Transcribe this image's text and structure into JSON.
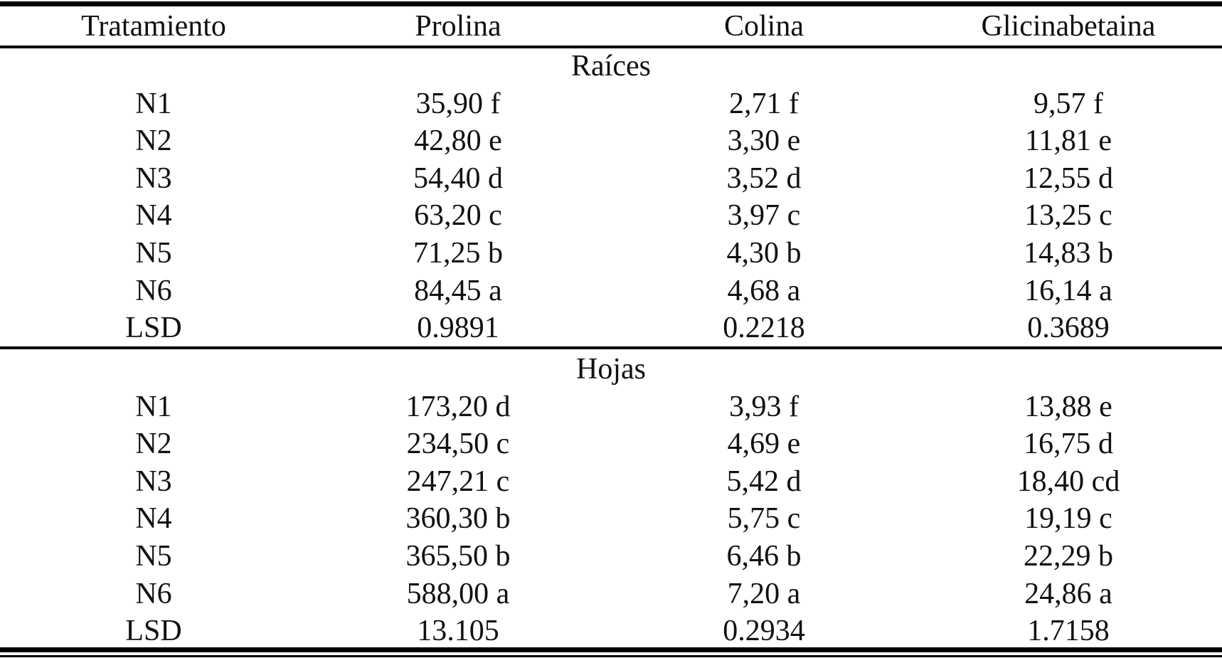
{
  "header": {
    "columns": [
      "Tratamiento",
      "Prolina",
      "Colina",
      "Glicinabetaina"
    ]
  },
  "sections": [
    {
      "title": "Raíces",
      "rows": [
        [
          "N1",
          "35,90 f",
          "2,71 f",
          "9,57 f"
        ],
        [
          "N2",
          "42,80 e",
          "3,30 e",
          "11,81 e"
        ],
        [
          "N3",
          "54,40 d",
          "3,52 d",
          "12,55 d"
        ],
        [
          "N4",
          "63,20 c",
          "3,97 c",
          "13,25 c"
        ],
        [
          "N5",
          "71,25 b",
          "4,30 b",
          "14,83 b"
        ],
        [
          "N6",
          "84,45 a",
          "4,68 a",
          "16,14 a"
        ],
        [
          "LSD",
          "0.9891",
          "0.2218",
          "0.3689"
        ]
      ]
    },
    {
      "title": "Hojas",
      "rows": [
        [
          "N1",
          "173,20 d",
          "3,93 f",
          "13,88 e"
        ],
        [
          "N2",
          "234,50 c",
          "4,69 e",
          "16,75 d"
        ],
        [
          "N3",
          "247,21 c",
          "5,42 d",
          "18,40 cd"
        ],
        [
          "N4",
          "360,30 b",
          "5,75 c",
          "19,19 c"
        ],
        [
          "N5",
          "365,50 b",
          "6,46 b",
          "22,29 b"
        ],
        [
          "N6",
          "588,00 a",
          "7,20 a",
          "24,86 a"
        ],
        [
          "LSD",
          "13.105",
          "0.2934",
          "1.7158"
        ]
      ]
    }
  ]
}
